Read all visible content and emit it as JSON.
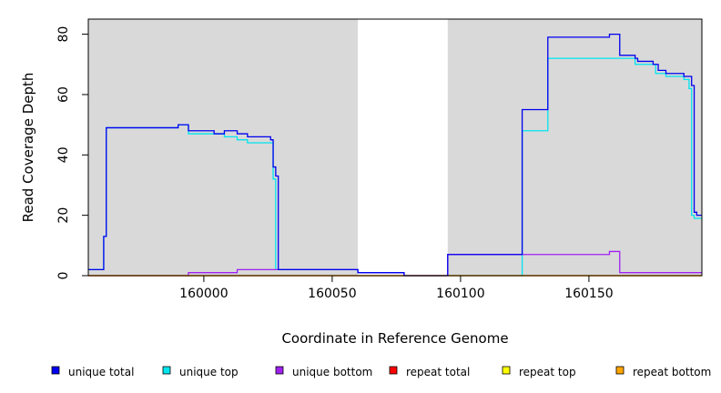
{
  "chart_data": {
    "type": "line",
    "title": "",
    "xlabel": "Coordinate in Reference Genome",
    "ylabel": "Read Coverage Depth",
    "xlim": [
      159955,
      160194
    ],
    "ylim": [
      0,
      85
    ],
    "xticks": [
      160000,
      160050,
      160100,
      160150
    ],
    "yticks": [
      0,
      20,
      40,
      60,
      80
    ],
    "grid": false,
    "legend_position": "bottom",
    "shaded_regions": [
      {
        "x_start": 159955,
        "x_end": 160060,
        "color": "#d9d9d9"
      },
      {
        "x_start": 160095,
        "x_end": 160194,
        "color": "#d9d9d9"
      }
    ],
    "series": [
      {
        "name": "unique top",
        "color": "#00e5ee",
        "steps": [
          [
            159955,
            2
          ],
          [
            159961,
            13
          ],
          [
            159962,
            49
          ],
          [
            159990,
            50
          ],
          [
            159994,
            47
          ],
          [
            160003,
            47
          ],
          [
            160008,
            46
          ],
          [
            160013,
            45
          ],
          [
            160017,
            44
          ],
          [
            160026,
            44
          ],
          [
            160027,
            32
          ],
          [
            160028,
            2
          ],
          [
            160060,
            1
          ],
          [
            160078,
            0
          ],
          [
            160095,
            0
          ],
          [
            160124,
            48
          ],
          [
            160134,
            72
          ],
          [
            160162,
            72
          ],
          [
            160168,
            70
          ],
          [
            160176,
            67
          ],
          [
            160180,
            66
          ],
          [
            160187,
            65
          ],
          [
            160189,
            62
          ],
          [
            160190,
            20
          ],
          [
            160191,
            19
          ],
          [
            160194,
            19
          ]
        ]
      },
      {
        "name": "unique bottom",
        "color": "#a020f0",
        "steps": [
          [
            159955,
            0
          ],
          [
            159994,
            1
          ],
          [
            160013,
            2
          ],
          [
            160034,
            2
          ],
          [
            160060,
            1
          ],
          [
            160078,
            0
          ],
          [
            160095,
            7
          ],
          [
            160158,
            8
          ],
          [
            160162,
            1
          ],
          [
            160194,
            1
          ]
        ]
      },
      {
        "name": "repeat total",
        "color": "#ff0000",
        "steps": [
          [
            159955,
            0
          ],
          [
            160194,
            0
          ]
        ]
      },
      {
        "name": "repeat top",
        "color": "#ffff00",
        "steps": [
          [
            159955,
            0
          ],
          [
            160194,
            0
          ]
        ]
      },
      {
        "name": "repeat bottom",
        "color": "#ffa500",
        "steps": [
          [
            159955,
            0
          ],
          [
            160194,
            0
          ]
        ]
      },
      {
        "name": "unique total",
        "color": "#0000ee",
        "steps": [
          [
            159955,
            2
          ],
          [
            159961,
            13
          ],
          [
            159962,
            49
          ],
          [
            159990,
            50
          ],
          [
            159994,
            48
          ],
          [
            160004,
            47
          ],
          [
            160008,
            48
          ],
          [
            160013,
            47
          ],
          [
            160017,
            46
          ],
          [
            160026,
            45
          ],
          [
            160027,
            36
          ],
          [
            160028,
            33
          ],
          [
            160029,
            2
          ],
          [
            160060,
            1
          ],
          [
            160078,
            0
          ],
          [
            160095,
            7
          ],
          [
            160124,
            55
          ],
          [
            160134,
            79
          ],
          [
            160158,
            80
          ],
          [
            160162,
            73
          ],
          [
            160168,
            72
          ],
          [
            160169,
            71
          ],
          [
            160175,
            70
          ],
          [
            160177,
            68
          ],
          [
            160180,
            67
          ],
          [
            160187,
            66
          ],
          [
            160190,
            63
          ],
          [
            160191,
            21
          ],
          [
            160192,
            20
          ],
          [
            160194,
            20
          ]
        ]
      }
    ],
    "legend": [
      {
        "name": "unique total",
        "color": "#0000ee"
      },
      {
        "name": "unique top",
        "color": "#00e5ee"
      },
      {
        "name": "unique bottom",
        "color": "#a020f0"
      },
      {
        "name": "repeat total",
        "color": "#ff0000"
      },
      {
        "name": "repeat top",
        "color": "#ffff00"
      },
      {
        "name": "repeat bottom",
        "color": "#ffa500"
      }
    ]
  }
}
